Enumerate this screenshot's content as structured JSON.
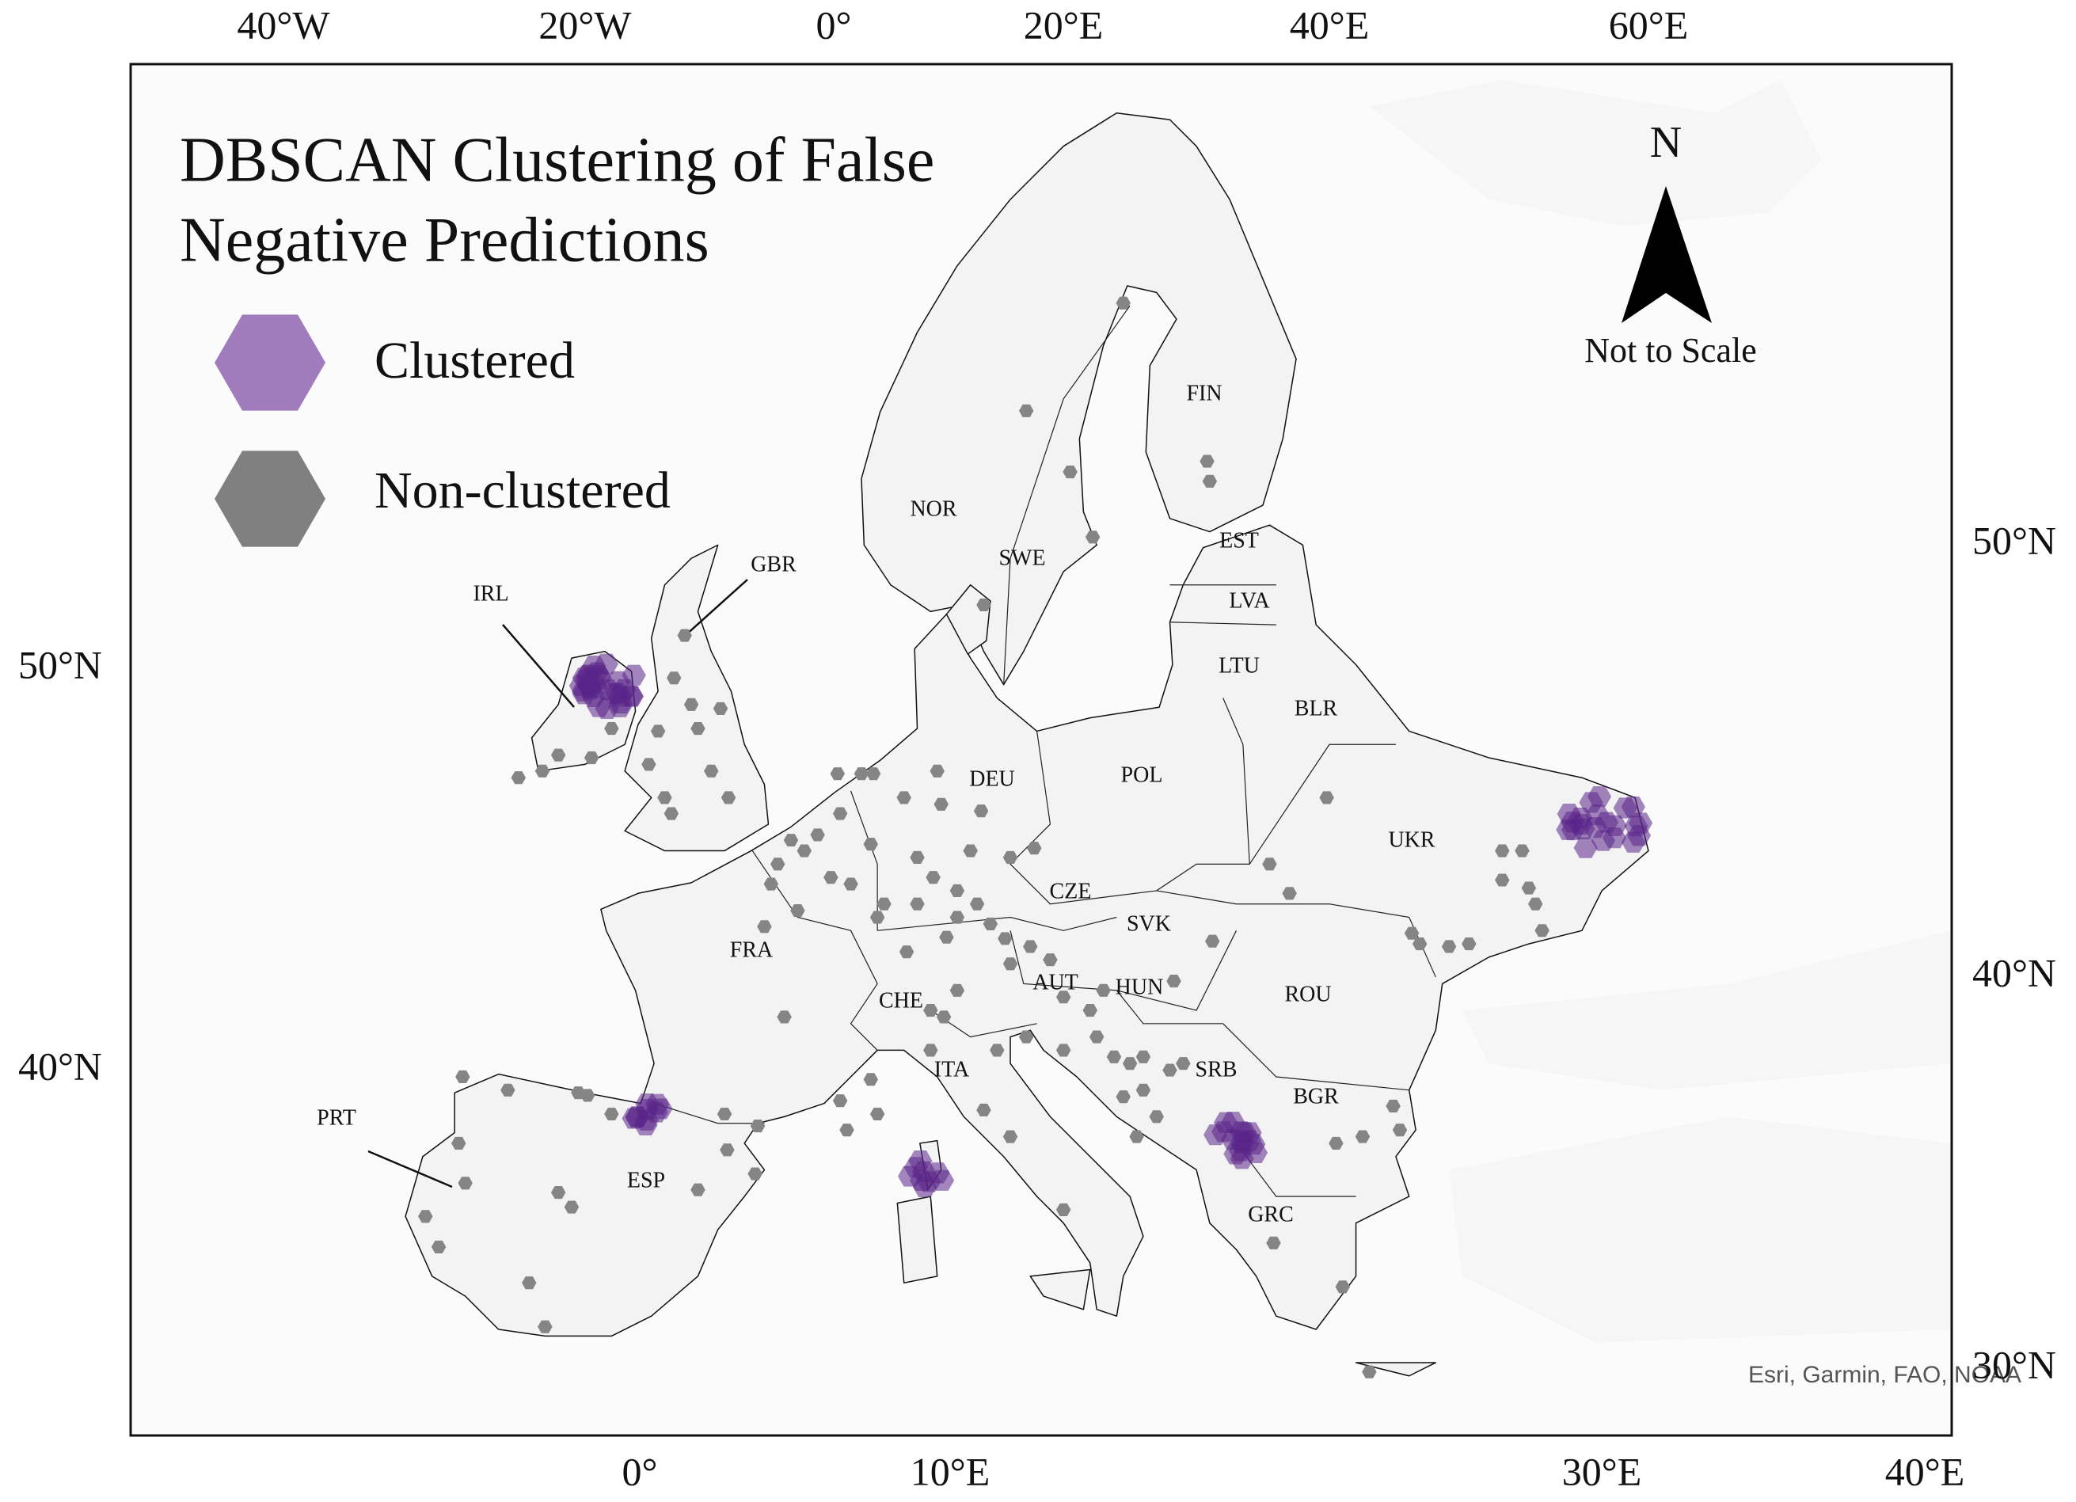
{
  "title": [
    "DBSCAN Clustering of False",
    "Negative Predictions"
  ],
  "legend": [
    {
      "label": "Clustered"
    },
    {
      "label": "Non-clustered"
    }
  ],
  "north_arrow": {
    "label": "N",
    "note": "Not to Scale"
  },
  "graticule": {
    "top": [
      "40°W",
      "20°W",
      "0°",
      "20°E",
      "40°E",
      "60°E"
    ],
    "bottom": [
      "0°",
      "10°E",
      "30°E",
      "40°E"
    ],
    "left": [
      "50°N",
      "40°N"
    ],
    "right": [
      "50°N",
      "40°N",
      "30°N"
    ]
  },
  "countries": [
    "NOR",
    "SWE",
    "FIN",
    "EST",
    "LVA",
    "LTU",
    "BLR",
    "GBR",
    "IRL",
    "DEU",
    "POL",
    "UKR",
    "CZE",
    "SVK",
    "FRA",
    "AUT",
    "HUN",
    "ROU",
    "CHE",
    "SRB",
    "ITA",
    "BGR",
    "PRT",
    "ESP",
    "GRC"
  ],
  "attribution": "Esri, Garmin, FAO, NOAA"
}
